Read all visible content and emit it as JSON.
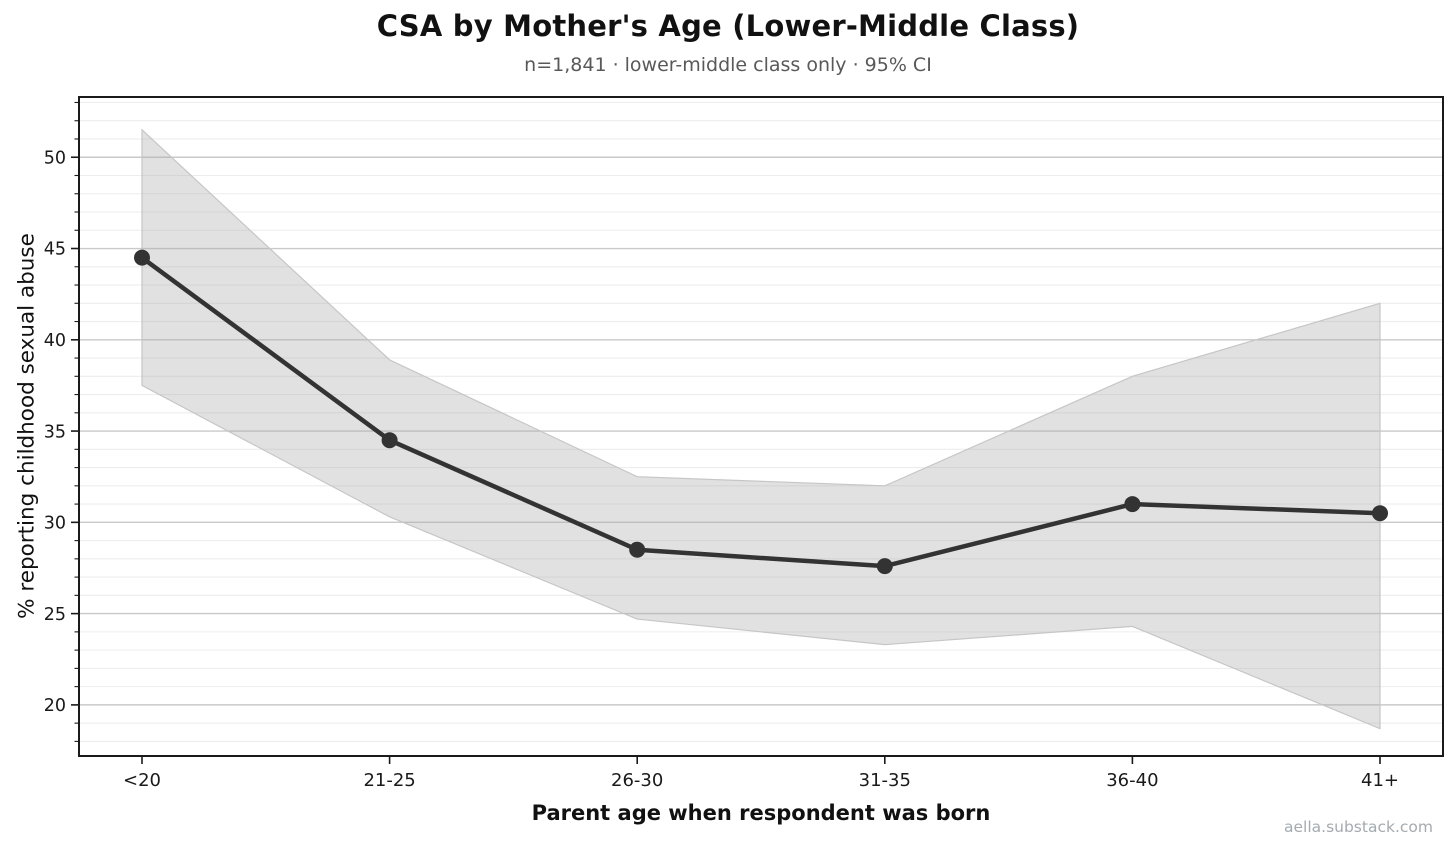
{
  "chart_data": {
    "type": "line",
    "title": "CSA by Mother's Age (Lower-Middle Class)",
    "subtitle": "n=1,841 · lower-middle class only · 95% CI",
    "xlabel": "Parent age when respondent was born",
    "ylabel": "% reporting childhood sexual abuse",
    "categories": [
      "<20",
      "21-25",
      "26-30",
      "31-35",
      "36-40",
      "41+"
    ],
    "series": [
      {
        "name": "% reporting childhood sexual abuse",
        "values": [
          44.5,
          34.5,
          28.5,
          27.6,
          31.0,
          30.5
        ],
        "ci_upper": [
          51.5,
          38.9,
          32.5,
          32.0,
          38.0,
          42.0
        ],
        "ci_lower": [
          37.5,
          30.3,
          24.7,
          23.3,
          24.3,
          18.7
        ]
      }
    ],
    "ci_level": "95% CI",
    "ylim": [
      17.2,
      53.3
    ],
    "yticks": [
      20,
      25,
      30,
      35,
      40,
      45,
      50
    ],
    "minor_grid_step": 1,
    "grid": "major+minor horizontal",
    "legend": "none",
    "marker": "circle"
  },
  "watermark": "aella.substack.com",
  "colors": {
    "line": "#333333",
    "marker": "#333333",
    "band_fill": "#aaaaaa",
    "band_opacity": 0.35,
    "band_edge": "#c6c6c6",
    "grid_major": "#c9c9c9",
    "grid_minor": "#ededed",
    "spine": "#1a1a1a",
    "tick": "#1a1a1a",
    "tick_label": "#1a1a1a",
    "title": "#111111",
    "subtitle": "#595959",
    "watermark": "#a4abb0",
    "background": "#ffffff"
  }
}
